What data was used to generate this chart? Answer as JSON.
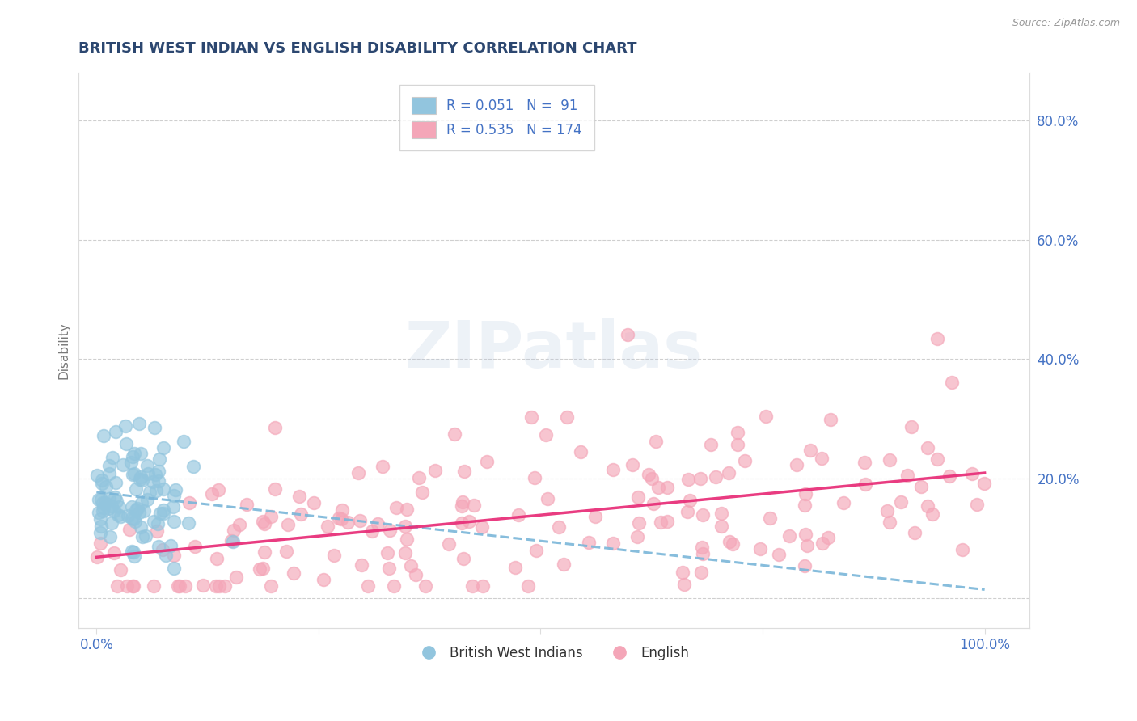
{
  "title": "BRITISH WEST INDIAN VS ENGLISH DISABILITY CORRELATION CHART",
  "source_text": "Source: ZipAtlas.com",
  "ylabel": "Disability",
  "xlim": [
    -0.02,
    1.05
  ],
  "ylim": [
    -0.05,
    0.88
  ],
  "xtick_positions": [
    0.0,
    0.25,
    0.5,
    0.75,
    1.0
  ],
  "xticklabels": [
    "0.0%",
    "",
    "",
    "",
    "100.0%"
  ],
  "ytick_positions": [
    0.0,
    0.2,
    0.4,
    0.6,
    0.8
  ],
  "ytick_labels_right": [
    "",
    "20.0%",
    "40.0%",
    "60.0%",
    "80.0%"
  ],
  "blue_scatter_color": "#92c5de",
  "pink_scatter_color": "#f4a6b8",
  "blue_line_color": "#7ab6d9",
  "pink_line_color": "#e8317a",
  "R_blue": 0.051,
  "N_blue": 91,
  "R_pink": 0.535,
  "N_pink": 174,
  "watermark": "ZIPatlas",
  "background_color": "#ffffff",
  "grid_color": "#bbbbbb",
  "title_color": "#2c4770",
  "axis_label_color": "#777777",
  "tick_label_color": "#4472c4",
  "spine_color": "#dddddd"
}
